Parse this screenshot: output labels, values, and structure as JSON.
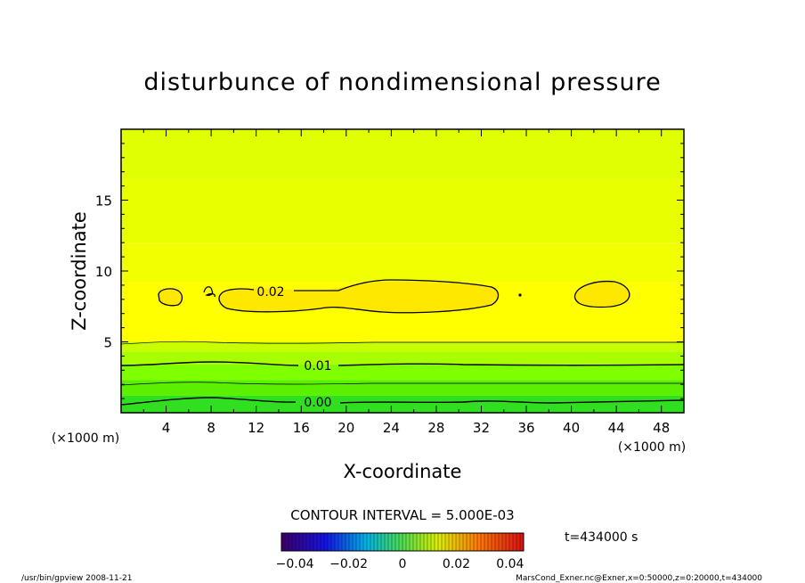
{
  "chart_data": {
    "type": "heatmap",
    "title": "disturbunce of nondimensional pressure",
    "xlabel": "X-coordinate",
    "ylabel": "Z-coordinate",
    "x_unit": "(×1000 m)",
    "y_unit": "(×1000 m)",
    "xlim": [
      0,
      50
    ],
    "ylim": [
      0,
      20
    ],
    "x_ticks": [
      "4",
      "8",
      "12",
      "16",
      "20",
      "24",
      "28",
      "32",
      "36",
      "40",
      "44",
      "48"
    ],
    "y_ticks": [
      "5",
      "10",
      "15"
    ],
    "contour_interval_label": "CONTOUR INTERVAL = 5.000E-03",
    "time_label": "t=434000  s",
    "colorbar": {
      "range": [
        -0.045,
        0.045
      ],
      "tick_labels": [
        "−0.04",
        "−0.02",
        "0",
        "0.02",
        "0.04"
      ],
      "tick_values": [
        -0.04,
        -0.02,
        0,
        0.02,
        0.04
      ]
    },
    "contour_labels": [
      {
        "text": "0.02",
        "x": 15,
        "z": 8.4
      },
      {
        "text": "0.01",
        "x": 17.5,
        "z": 3.3
      },
      {
        "text": "0.00",
        "x": 17.5,
        "z": 0.6
      }
    ],
    "bands": [
      {
        "z_top": 20.0,
        "z_bottom": 16.5,
        "color": "#e0ff00"
      },
      {
        "z_top": 16.5,
        "z_bottom": 12.0,
        "color": "#e8ff00"
      },
      {
        "z_top": 12.0,
        "z_bottom": 9.2,
        "color": "#f2ff00"
      },
      {
        "z_top": 9.2,
        "z_bottom": 5.0,
        "color": "#ffff00"
      },
      {
        "z_top": 5.0,
        "z_bottom": 4.3,
        "color": "#c8ff00"
      },
      {
        "z_top": 4.3,
        "z_bottom": 3.4,
        "color": "#a8ff00"
      },
      {
        "z_top": 3.4,
        "z_bottom": 2.3,
        "color": "#80ff00"
      },
      {
        "z_top": 2.3,
        "z_bottom": 1.2,
        "color": "#5af000"
      },
      {
        "z_top": 1.2,
        "z_bottom": 0.0,
        "color": "#30e020"
      }
    ],
    "max_region_color": "#ffe800"
  },
  "footer": {
    "left": "/usr/bin/gpview   2008-11-21",
    "right": "MarsCond_Exner.nc@Exner,x=0:50000,z=0:20000,t=434000"
  }
}
